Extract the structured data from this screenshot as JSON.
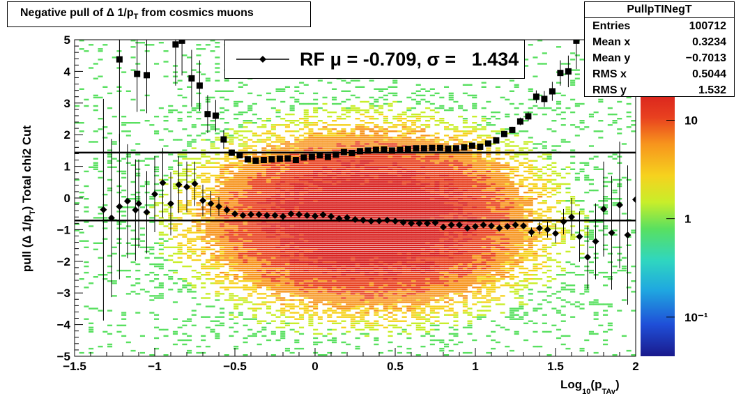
{
  "title": "Negative pull of Δ 1/pₜ from cosmics muons",
  "title_main": "Negative pull of Δ 1/p",
  "title_sub": "T",
  "title_tail": " from cosmics muons",
  "stats": {
    "name": "PullpTINegT",
    "rows": [
      {
        "key": "Entries",
        "value": "100712"
      },
      {
        "key": "Mean x",
        "value": "0.3234"
      },
      {
        "key": "Mean y",
        "value": "−0.7013"
      },
      {
        "key": "RMS x",
        "value": "0.5044"
      },
      {
        "key": "RMS y",
        "value": "1.532"
      }
    ]
  },
  "legend": {
    "text": "RF μ = -0.709, σ =   1.434"
  },
  "colors": {
    "line": "#000000",
    "palette": [
      "#1a1a8c",
      "#1f4fd8",
      "#1fa8e0",
      "#2fd6c0",
      "#59e060",
      "#c8ee2a",
      "#f6d21e",
      "#f7941d",
      "#e8401f",
      "#d8201e"
    ]
  },
  "chart_data": {
    "type": "heatmap",
    "title": "Negative pull of Δ 1/pₜ from cosmics muons",
    "xlabel_main": "Log",
    "xlabel_sub1": "10",
    "xlabel_paren": "(p",
    "xlabel_sub2": "TAv",
    "xlabel_close": ")",
    "ylabel": "pull (Δ 1/pₜ)  Total chi2 Cut",
    "xlim": [
      -1.5,
      2.0
    ],
    "ylim": [
      -5,
      5
    ],
    "log_z": true,
    "z_range": [
      0.04,
      20
    ],
    "xticks": [
      -1.5,
      -1,
      -0.5,
      0,
      0.5,
      1,
      1.5,
      2
    ],
    "xtick_labels": [
      "−1.5",
      "−1",
      "−0.5",
      "0",
      "0.5",
      "1",
      "1.5",
      "2"
    ],
    "yticks": [
      -5,
      -4,
      -3,
      -2,
      -1,
      0,
      1,
      2,
      3,
      4,
      5
    ],
    "ytick_labels": [
      "−5",
      "−4",
      "−3",
      "−2",
      "−1",
      "0",
      "1",
      "2",
      "3",
      "4",
      "5"
    ],
    "z_labels": [
      {
        "value": 10,
        "text": "10"
      },
      {
        "value": 1,
        "text": "1"
      },
      {
        "value": 0.1,
        "text": "10⁻¹"
      }
    ],
    "horizontal_lines": [
      1.434,
      -0.709
    ],
    "series": [
      {
        "name": "RMS",
        "marker": "square",
        "points": [
          [
            -1.22,
            4.38,
            2.6
          ],
          [
            -1.11,
            3.92,
            1.2
          ],
          [
            -1.05,
            3.88,
            1.2
          ],
          [
            -0.87,
            4.85,
            1.3
          ],
          [
            -0.83,
            4.97,
            1.1
          ],
          [
            -0.77,
            3.78,
            0.9
          ],
          [
            -0.72,
            3.55,
            0.8
          ],
          [
            -0.67,
            2.65,
            0.6
          ],
          [
            -0.62,
            2.6,
            0.5
          ],
          [
            -0.57,
            1.85,
            0.3
          ],
          [
            -0.52,
            1.43,
            0.1
          ],
          [
            -0.47,
            1.35,
            0.08
          ],
          [
            -0.42,
            1.22,
            0.05
          ],
          [
            -0.37,
            1.18,
            0.05
          ],
          [
            -0.32,
            1.2,
            0.04
          ],
          [
            -0.27,
            1.22,
            0.04
          ],
          [
            -0.22,
            1.24,
            0.04
          ],
          [
            -0.17,
            1.25,
            0.04
          ],
          [
            -0.12,
            1.2,
            0.04
          ],
          [
            -0.07,
            1.28,
            0.04
          ],
          [
            -0.02,
            1.3,
            0.04
          ],
          [
            0.03,
            1.35,
            0.04
          ],
          [
            0.08,
            1.3,
            0.04
          ],
          [
            0.13,
            1.37,
            0.04
          ],
          [
            0.18,
            1.45,
            0.04
          ],
          [
            0.23,
            1.42,
            0.04
          ],
          [
            0.28,
            1.48,
            0.04
          ],
          [
            0.33,
            1.5,
            0.04
          ],
          [
            0.38,
            1.52,
            0.04
          ],
          [
            0.43,
            1.53,
            0.04
          ],
          [
            0.48,
            1.5,
            0.04
          ],
          [
            0.53,
            1.52,
            0.04
          ],
          [
            0.58,
            1.55,
            0.04
          ],
          [
            0.63,
            1.57,
            0.04
          ],
          [
            0.68,
            1.57,
            0.04
          ],
          [
            0.73,
            1.58,
            0.04
          ],
          [
            0.78,
            1.58,
            0.04
          ],
          [
            0.83,
            1.56,
            0.04
          ],
          [
            0.88,
            1.57,
            0.04
          ],
          [
            0.93,
            1.6,
            0.04
          ],
          [
            0.98,
            1.65,
            0.05
          ],
          [
            1.03,
            1.62,
            0.05
          ],
          [
            1.08,
            1.72,
            0.05
          ],
          [
            1.13,
            1.82,
            0.06
          ],
          [
            1.18,
            2.02,
            0.08
          ],
          [
            1.23,
            2.15,
            0.1
          ],
          [
            1.28,
            2.42,
            0.12
          ],
          [
            1.33,
            2.58,
            0.15
          ],
          [
            1.38,
            3.2,
            0.2
          ],
          [
            1.43,
            3.13,
            0.25
          ],
          [
            1.48,
            3.37,
            0.3
          ],
          [
            1.53,
            3.95,
            0.4
          ],
          [
            1.58,
            4.0,
            0.5
          ],
          [
            1.63,
            4.97,
            0.9
          ]
        ]
      },
      {
        "name": "Mean",
        "marker": "diamond",
        "points": [
          [
            -1.32,
            -0.37,
            3.5
          ],
          [
            -1.27,
            -0.63,
            2.5
          ],
          [
            -1.22,
            -0.27,
            2.3
          ],
          [
            -1.17,
            -0.1,
            1.8
          ],
          [
            -1.12,
            -0.38,
            1.6
          ],
          [
            -1.1,
            -0.18,
            1.4
          ],
          [
            -1.05,
            -0.45,
            1.3
          ],
          [
            -1.0,
            0.12,
            1.2
          ],
          [
            -0.95,
            0.48,
            1.1
          ],
          [
            -0.9,
            -0.18,
            1.0
          ],
          [
            -0.85,
            0.42,
            0.9
          ],
          [
            -0.8,
            0.35,
            0.8
          ],
          [
            -0.75,
            0.45,
            0.7
          ],
          [
            -0.7,
            -0.08,
            0.5
          ],
          [
            -0.65,
            -0.18,
            0.4
          ],
          [
            -0.6,
            -0.27,
            0.3
          ],
          [
            -0.55,
            -0.38,
            0.15
          ],
          [
            -0.5,
            -0.5,
            0.05
          ],
          [
            -0.45,
            -0.55,
            0.04
          ],
          [
            -0.4,
            -0.52,
            0.04
          ],
          [
            -0.35,
            -0.52,
            0.03
          ],
          [
            -0.3,
            -0.55,
            0.03
          ],
          [
            -0.25,
            -0.55,
            0.03
          ],
          [
            -0.2,
            -0.58,
            0.03
          ],
          [
            -0.15,
            -0.5,
            0.03
          ],
          [
            -0.1,
            -0.52,
            0.03
          ],
          [
            -0.05,
            -0.55,
            0.03
          ],
          [
            0.0,
            -0.57,
            0.03
          ],
          [
            0.05,
            -0.53,
            0.03
          ],
          [
            0.1,
            -0.58,
            0.03
          ],
          [
            0.15,
            -0.65,
            0.03
          ],
          [
            0.2,
            -0.62,
            0.03
          ],
          [
            0.25,
            -0.68,
            0.03
          ],
          [
            0.3,
            -0.7,
            0.03
          ],
          [
            0.35,
            -0.73,
            0.03
          ],
          [
            0.4,
            -0.72,
            0.03
          ],
          [
            0.45,
            -0.7,
            0.03
          ],
          [
            0.5,
            -0.73,
            0.03
          ],
          [
            0.55,
            -0.77,
            0.03
          ],
          [
            0.6,
            -0.8,
            0.03
          ],
          [
            0.65,
            -0.8,
            0.03
          ],
          [
            0.7,
            -0.8,
            0.03
          ],
          [
            0.75,
            -0.78,
            0.03
          ],
          [
            0.8,
            -0.92,
            0.03
          ],
          [
            0.85,
            -0.85,
            0.03
          ],
          [
            0.9,
            -0.85,
            0.04
          ],
          [
            0.95,
            -0.95,
            0.04
          ],
          [
            1.0,
            -0.9,
            0.04
          ],
          [
            1.05,
            -0.85,
            0.05
          ],
          [
            1.1,
            -0.88,
            0.05
          ],
          [
            1.15,
            -0.95,
            0.06
          ],
          [
            1.2,
            -0.9,
            0.06
          ],
          [
            1.25,
            -0.85,
            0.08
          ],
          [
            1.3,
            -0.88,
            0.1
          ],
          [
            1.35,
            -1.08,
            0.15
          ],
          [
            1.4,
            -0.95,
            0.2
          ],
          [
            1.45,
            -1.0,
            0.25
          ],
          [
            1.5,
            -1.12,
            0.3
          ],
          [
            1.55,
            -0.75,
            0.4
          ],
          [
            1.6,
            -0.6,
            0.6
          ],
          [
            1.65,
            -1.22,
            0.8
          ],
          [
            1.7,
            -1.87,
            1.0
          ],
          [
            1.75,
            -1.37,
            1.2
          ],
          [
            1.8,
            -0.35,
            1.5
          ],
          [
            1.85,
            -1.1,
            1.8
          ],
          [
            1.9,
            -0.22,
            2.0
          ],
          [
            1.95,
            -1.17,
            2.2
          ],
          [
            2.0,
            -0.05,
            2.5
          ]
        ]
      }
    ]
  }
}
